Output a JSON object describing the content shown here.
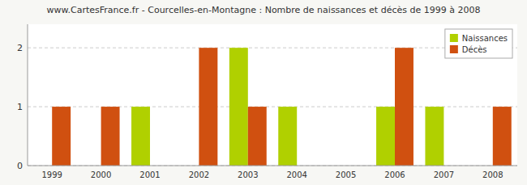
{
  "chart_data": {
    "type": "bar",
    "title": "www.CartesFrance.fr - Courcelles-en-Montagne : Nombre de naissances et décès de 1999 à 2008",
    "categories": [
      "1999",
      "2000",
      "2001",
      "2002",
      "2003",
      "2004",
      "2005",
      "2006",
      "2007",
      "2008"
    ],
    "series": [
      {
        "name": "Naissances",
        "color": "#b0d000",
        "values": [
          0,
          0,
          1,
          0,
          2,
          1,
          0,
          1,
          1,
          0
        ]
      },
      {
        "name": "Décès",
        "color": "#d05010",
        "values": [
          1,
          1,
          0,
          2,
          1,
          0,
          0,
          2,
          0,
          1
        ]
      }
    ],
    "ylim": [
      0,
      2.4
    ],
    "yticks": [
      0,
      1,
      2
    ],
    "grid": true,
    "legend": "upper right"
  }
}
